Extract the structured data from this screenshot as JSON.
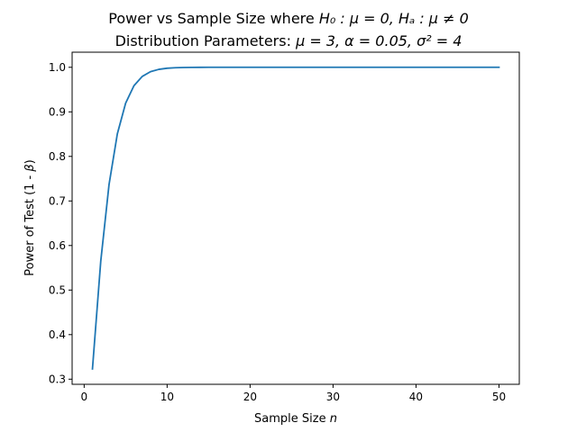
{
  "chart_data": {
    "type": "line",
    "title_line1_prefix": "Power vs Sample Size where ",
    "title_line1_math": "H₀ : μ = 0, Hₐ : μ ≠ 0",
    "title_line2_prefix": "Distribution Parameters: ",
    "title_line2_math": "μ = 3, α = 0.05, σ² = 4",
    "xlabel_prefix": "Sample Size ",
    "xlabel_math": "n",
    "ylabel_prefix": "Power of Test (1 - ",
    "ylabel_math": "β",
    "ylabel_suffix": ")",
    "xlim": [
      -1.45,
      52.45
    ],
    "ylim": [
      0.2885,
      1.0339
    ],
    "x_ticks": [
      0,
      10,
      20,
      30,
      40,
      50
    ],
    "x_tick_labels": [
      "0",
      "10",
      "20",
      "30",
      "40",
      "50"
    ],
    "y_ticks": [
      0.3,
      0.4,
      0.5,
      0.6,
      0.7,
      0.8,
      0.9,
      1.0
    ],
    "y_tick_labels": [
      "0.3",
      "0.4",
      "0.5",
      "0.6",
      "0.7",
      "0.8",
      "0.9",
      "1.0"
    ],
    "grid": false,
    "series": [
      {
        "color": "#1f77b4",
        "x": [
          1,
          2,
          3,
          4,
          5,
          6,
          7,
          8,
          9,
          10,
          11,
          12,
          13,
          14,
          15,
          16,
          17,
          18,
          19,
          20,
          21,
          22,
          23,
          24,
          25,
          26,
          27,
          28,
          29,
          30,
          31,
          32,
          33,
          34,
          35,
          36,
          37,
          38,
          39,
          40,
          41,
          42,
          43,
          44,
          45,
          46,
          47,
          48,
          49,
          50
        ],
        "y": [
          0.323,
          0.5647,
          0.7369,
          0.8505,
          0.9195,
          0.9586,
          0.9795,
          0.9902,
          0.9954,
          0.9979,
          0.9991,
          0.9996,
          0.9998,
          0.9999,
          1.0,
          1.0,
          1.0,
          1.0,
          1.0,
          1.0,
          1.0,
          1.0,
          1.0,
          1.0,
          1.0,
          1.0,
          1.0,
          1.0,
          1.0,
          1.0,
          1.0,
          1.0,
          1.0,
          1.0,
          1.0,
          1.0,
          1.0,
          1.0,
          1.0,
          1.0,
          1.0,
          1.0,
          1.0,
          1.0,
          1.0,
          1.0,
          1.0,
          1.0,
          1.0,
          1.0
        ]
      }
    ]
  }
}
